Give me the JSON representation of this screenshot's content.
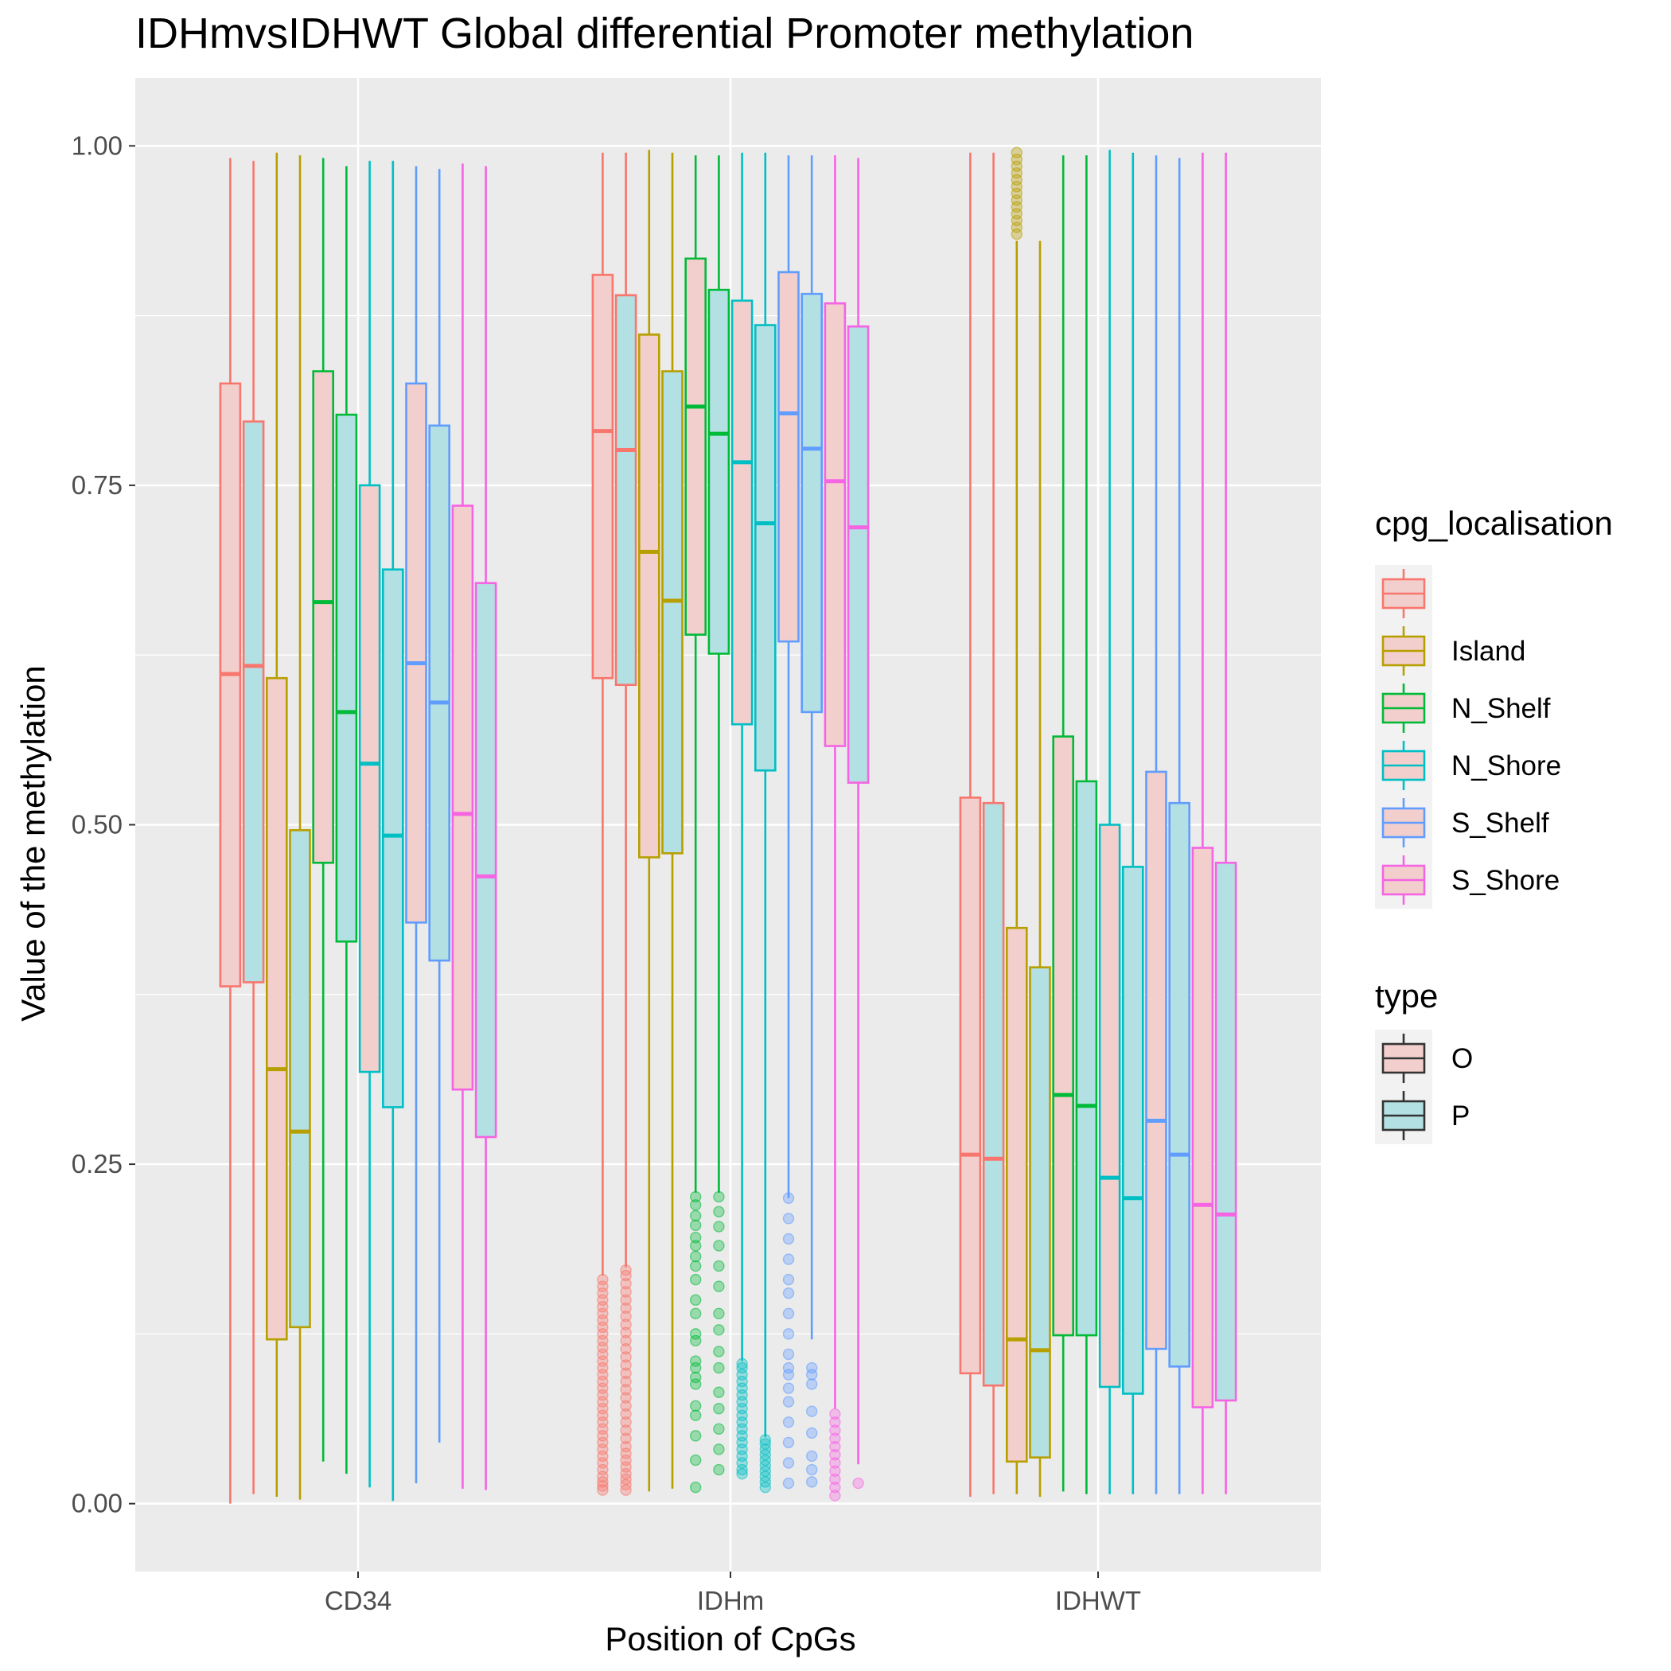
{
  "chart_data": {
    "type": "boxplot",
    "title": "IDHmvsIDHWT Global differential Promoter methylation",
    "xlabel": "Position of CpGs",
    "ylabel": "Value of the methylation",
    "ylim": [
      -0.05,
      1.05
    ],
    "y_ticks": [
      0.0,
      0.25,
      0.5,
      0.75,
      1.0
    ],
    "y_tick_labels": [
      "0.00",
      "0.25",
      "0.50",
      "0.75",
      "1.00"
    ],
    "categories": [
      "CD34",
      "IDHm",
      "IDHWT"
    ],
    "grid": true,
    "legend_position": "right",
    "colors": {
      "background": "#ebebeb",
      "grid": "#ffffff",
      "fill_O": "#f2cfcc",
      "fill_P": "#b3e0e2",
      "none": "#F8766D",
      "Island": "#B79F00",
      "N_Shelf": "#00BA38",
      "N_Shore": "#00BFC4",
      "S_Shelf": "#619CFF",
      "S_Shore": "#F564E3"
    },
    "legends": [
      {
        "title": "cpg_localisation",
        "items": [
          {
            "key": "none",
            "label": ""
          },
          {
            "key": "Island",
            "label": "Island"
          },
          {
            "key": "N_Shelf",
            "label": "N_Shelf"
          },
          {
            "key": "N_Shore",
            "label": "N_Shore"
          },
          {
            "key": "S_Shelf",
            "label": "S_Shelf"
          },
          {
            "key": "S_Shore",
            "label": "S_Shore"
          }
        ]
      },
      {
        "title": "type",
        "items": [
          {
            "key": "O",
            "label": "O"
          },
          {
            "key": "P",
            "label": "P"
          }
        ]
      }
    ],
    "series": [
      {
        "category": "CD34",
        "loc": "none",
        "type": "O",
        "ymin": 0.0,
        "q1": 0.381,
        "median": 0.611,
        "q3": 0.825,
        "ymax": 0.991
      },
      {
        "category": "CD34",
        "loc": "none",
        "type": "P",
        "ymin": 0.007,
        "q1": 0.384,
        "median": 0.617,
        "q3": 0.797,
        "ymax": 0.989
      },
      {
        "category": "CD34",
        "loc": "Island",
        "type": "O",
        "ymin": 0.005,
        "q1": 0.121,
        "median": 0.32,
        "q3": 0.608,
        "ymax": 0.995
      },
      {
        "category": "CD34",
        "loc": "Island",
        "type": "P",
        "ymin": 0.003,
        "q1": 0.13,
        "median": 0.274,
        "q3": 0.496,
        "ymax": 0.993
      },
      {
        "category": "CD34",
        "loc": "N_Shelf",
        "type": "O",
        "ymin": 0.031,
        "q1": 0.472,
        "median": 0.664,
        "q3": 0.834,
        "ymax": 0.991
      },
      {
        "category": "CD34",
        "loc": "N_Shelf",
        "type": "P",
        "ymin": 0.022,
        "q1": 0.414,
        "median": 0.583,
        "q3": 0.802,
        "ymax": 0.985
      },
      {
        "category": "CD34",
        "loc": "N_Shore",
        "type": "O",
        "ymin": 0.012,
        "q1": 0.318,
        "median": 0.545,
        "q3": 0.75,
        "ymax": 0.989
      },
      {
        "category": "CD34",
        "loc": "N_Shore",
        "type": "P",
        "ymin": 0.002,
        "q1": 0.292,
        "median": 0.492,
        "q3": 0.688,
        "ymax": 0.989
      },
      {
        "category": "CD34",
        "loc": "S_Shelf",
        "type": "O",
        "ymin": 0.015,
        "q1": 0.428,
        "median": 0.619,
        "q3": 0.825,
        "ymax": 0.985
      },
      {
        "category": "CD34",
        "loc": "S_Shelf",
        "type": "P",
        "ymin": 0.045,
        "q1": 0.4,
        "median": 0.59,
        "q3": 0.794,
        "ymax": 0.983
      },
      {
        "category": "CD34",
        "loc": "S_Shore",
        "type": "O",
        "ymin": 0.011,
        "q1": 0.305,
        "median": 0.508,
        "q3": 0.735,
        "ymax": 0.987
      },
      {
        "category": "CD34",
        "loc": "S_Shore",
        "type": "P",
        "ymin": 0.01,
        "q1": 0.27,
        "median": 0.462,
        "q3": 0.678,
        "ymax": 0.985
      },
      {
        "category": "IDHm",
        "loc": "none",
        "type": "O",
        "ymin": 0.168,
        "q1": 0.608,
        "median": 0.79,
        "q3": 0.905,
        "ymax": 0.995
      },
      {
        "category": "IDHm",
        "loc": "none",
        "type": "P",
        "ymin": 0.174,
        "q1": 0.603,
        "median": 0.776,
        "q3": 0.89,
        "ymax": 0.995
      },
      {
        "category": "IDHm",
        "loc": "Island",
        "type": "O",
        "ymin": 0.009,
        "q1": 0.476,
        "median": 0.701,
        "q3": 0.861,
        "ymax": 0.997
      },
      {
        "category": "IDHm",
        "loc": "Island",
        "type": "P",
        "ymin": 0.011,
        "q1": 0.479,
        "median": 0.665,
        "q3": 0.834,
        "ymax": 0.995
      },
      {
        "category": "IDHm",
        "loc": "N_Shelf",
        "type": "O",
        "ymin": 0.229,
        "q1": 0.64,
        "median": 0.808,
        "q3": 0.917,
        "ymax": 0.993
      },
      {
        "category": "IDHm",
        "loc": "N_Shelf",
        "type": "P",
        "ymin": 0.229,
        "q1": 0.626,
        "median": 0.788,
        "q3": 0.894,
        "ymax": 0.993
      },
      {
        "category": "IDHm",
        "loc": "N_Shore",
        "type": "O",
        "ymin": 0.105,
        "q1": 0.574,
        "median": 0.767,
        "q3": 0.886,
        "ymax": 0.995
      },
      {
        "category": "IDHm",
        "loc": "N_Shore",
        "type": "P",
        "ymin": 0.049,
        "q1": 0.54,
        "median": 0.722,
        "q3": 0.868,
        "ymax": 0.995
      },
      {
        "category": "IDHm",
        "loc": "S_Shelf",
        "type": "O",
        "ymin": 0.225,
        "q1": 0.635,
        "median": 0.803,
        "q3": 0.907,
        "ymax": 0.993
      },
      {
        "category": "IDHm",
        "loc": "S_Shelf",
        "type": "P",
        "ymin": 0.121,
        "q1": 0.583,
        "median": 0.777,
        "q3": 0.891,
        "ymax": 0.993
      },
      {
        "category": "IDHm",
        "loc": "S_Shore",
        "type": "O",
        "ymin": 0.07,
        "q1": 0.558,
        "median": 0.753,
        "q3": 0.884,
        "ymax": 0.993
      },
      {
        "category": "IDHm",
        "loc": "S_Shore",
        "type": "P",
        "ymin": 0.029,
        "q1": 0.531,
        "median": 0.719,
        "q3": 0.867,
        "ymax": 0.991
      },
      {
        "category": "IDHWT",
        "loc": "none",
        "type": "O",
        "ymin": 0.005,
        "q1": 0.096,
        "median": 0.257,
        "q3": 0.52,
        "ymax": 0.995
      },
      {
        "category": "IDHWT",
        "loc": "none",
        "type": "P",
        "ymin": 0.007,
        "q1": 0.087,
        "median": 0.254,
        "q3": 0.516,
        "ymax": 0.995
      },
      {
        "category": "IDHWT",
        "loc": "Island",
        "type": "O",
        "ymin": 0.007,
        "q1": 0.031,
        "median": 0.121,
        "q3": 0.424,
        "ymax": 0.93
      },
      {
        "category": "IDHWT",
        "loc": "Island",
        "type": "P",
        "ymin": 0.005,
        "q1": 0.034,
        "median": 0.113,
        "q3": 0.395,
        "ymax": 0.93
      },
      {
        "category": "IDHWT",
        "loc": "N_Shelf",
        "type": "O",
        "ymin": 0.009,
        "q1": 0.124,
        "median": 0.301,
        "q3": 0.565,
        "ymax": 0.993
      },
      {
        "category": "IDHWT",
        "loc": "N_Shelf",
        "type": "P",
        "ymin": 0.007,
        "q1": 0.124,
        "median": 0.293,
        "q3": 0.532,
        "ymax": 0.993
      },
      {
        "category": "IDHWT",
        "loc": "N_Shore",
        "type": "O",
        "ymin": 0.007,
        "q1": 0.086,
        "median": 0.24,
        "q3": 0.5,
        "ymax": 0.997
      },
      {
        "category": "IDHWT",
        "loc": "N_Shore",
        "type": "P",
        "ymin": 0.007,
        "q1": 0.081,
        "median": 0.225,
        "q3": 0.469,
        "ymax": 0.995
      },
      {
        "category": "IDHWT",
        "loc": "S_Shelf",
        "type": "O",
        "ymin": 0.007,
        "q1": 0.114,
        "median": 0.282,
        "q3": 0.539,
        "ymax": 0.993
      },
      {
        "category": "IDHWT",
        "loc": "S_Shelf",
        "type": "P",
        "ymin": 0.007,
        "q1": 0.101,
        "median": 0.257,
        "q3": 0.516,
        "ymax": 0.991
      },
      {
        "category": "IDHWT",
        "loc": "S_Shore",
        "type": "O",
        "ymin": 0.007,
        "q1": 0.071,
        "median": 0.22,
        "q3": 0.483,
        "ymax": 0.995
      },
      {
        "category": "IDHWT",
        "loc": "S_Shore",
        "type": "P",
        "ymin": 0.007,
        "q1": 0.076,
        "median": 0.213,
        "q3": 0.472,
        "ymax": 0.995
      }
    ],
    "outliers": [
      {
        "category": "IDHm",
        "loc": "none",
        "type": "O",
        "values": [
          0.01,
          0.013,
          0.016,
          0.02,
          0.025,
          0.03,
          0.035,
          0.04,
          0.045,
          0.05,
          0.055,
          0.06,
          0.065,
          0.07,
          0.075,
          0.08,
          0.085,
          0.09,
          0.095,
          0.1,
          0.105,
          0.11,
          0.115,
          0.12,
          0.125,
          0.13,
          0.135,
          0.14,
          0.145,
          0.15,
          0.155,
          0.16,
          0.165
        ]
      },
      {
        "category": "IDHm",
        "loc": "none",
        "type": "P",
        "values": [
          0.01,
          0.014,
          0.018,
          0.022,
          0.027,
          0.032,
          0.037,
          0.042,
          0.048,
          0.054,
          0.06,
          0.066,
          0.072,
          0.078,
          0.084,
          0.09,
          0.096,
          0.102,
          0.108,
          0.114,
          0.12,
          0.126,
          0.132,
          0.138,
          0.144,
          0.15,
          0.156,
          0.162,
          0.168,
          0.172
        ]
      },
      {
        "category": "IDHm",
        "loc": "N_Shelf",
        "type": "O",
        "values": [
          0.012,
          0.032,
          0.05,
          0.065,
          0.072,
          0.088,
          0.093,
          0.1,
          0.105,
          0.12,
          0.125,
          0.14,
          0.15,
          0.165,
          0.175,
          0.182,
          0.19,
          0.196,
          0.205,
          0.212,
          0.22,
          0.226
        ]
      },
      {
        "category": "IDHm",
        "loc": "N_Shelf",
        "type": "P",
        "values": [
          0.025,
          0.04,
          0.055,
          0.07,
          0.082,
          0.1,
          0.112,
          0.128,
          0.14,
          0.16,
          0.175,
          0.19,
          0.204,
          0.215,
          0.226
        ]
      },
      {
        "category": "IDHm",
        "loc": "N_Shore",
        "type": "O",
        "values": [
          0.022,
          0.025,
          0.03,
          0.035,
          0.04,
          0.045,
          0.05,
          0.055,
          0.06,
          0.065,
          0.07,
          0.075,
          0.08,
          0.085,
          0.09,
          0.095,
          0.1,
          0.103
        ]
      },
      {
        "category": "IDHm",
        "loc": "N_Shore",
        "type": "P",
        "values": [
          0.012,
          0.016,
          0.02,
          0.024,
          0.028,
          0.032,
          0.036,
          0.04,
          0.044,
          0.047
        ]
      },
      {
        "category": "IDHm",
        "loc": "S_Shelf",
        "type": "O",
        "values": [
          0.015,
          0.03,
          0.045,
          0.06,
          0.075,
          0.085,
          0.095,
          0.1,
          0.11,
          0.125,
          0.14,
          0.155,
          0.165,
          0.18,
          0.195,
          0.21,
          0.225
        ]
      },
      {
        "category": "IDHm",
        "loc": "S_Shelf",
        "type": "P",
        "values": [
          0.016,
          0.025,
          0.035,
          0.052,
          0.068,
          0.088,
          0.095,
          0.1
        ]
      },
      {
        "category": "IDHm",
        "loc": "S_Shore",
        "type": "O",
        "values": [
          0.006,
          0.012,
          0.018,
          0.024,
          0.03,
          0.036,
          0.042,
          0.048,
          0.054,
          0.06,
          0.066
        ]
      },
      {
        "category": "IDHm",
        "loc": "S_Shore",
        "type": "P",
        "values": [
          0.015
        ]
      },
      {
        "category": "IDHWT",
        "loc": "Island",
        "type": "O",
        "values": [
          0.935,
          0.94,
          0.945,
          0.95,
          0.955,
          0.96,
          0.965,
          0.97,
          0.975,
          0.98,
          0.985,
          0.99,
          0.995
        ]
      }
    ]
  }
}
